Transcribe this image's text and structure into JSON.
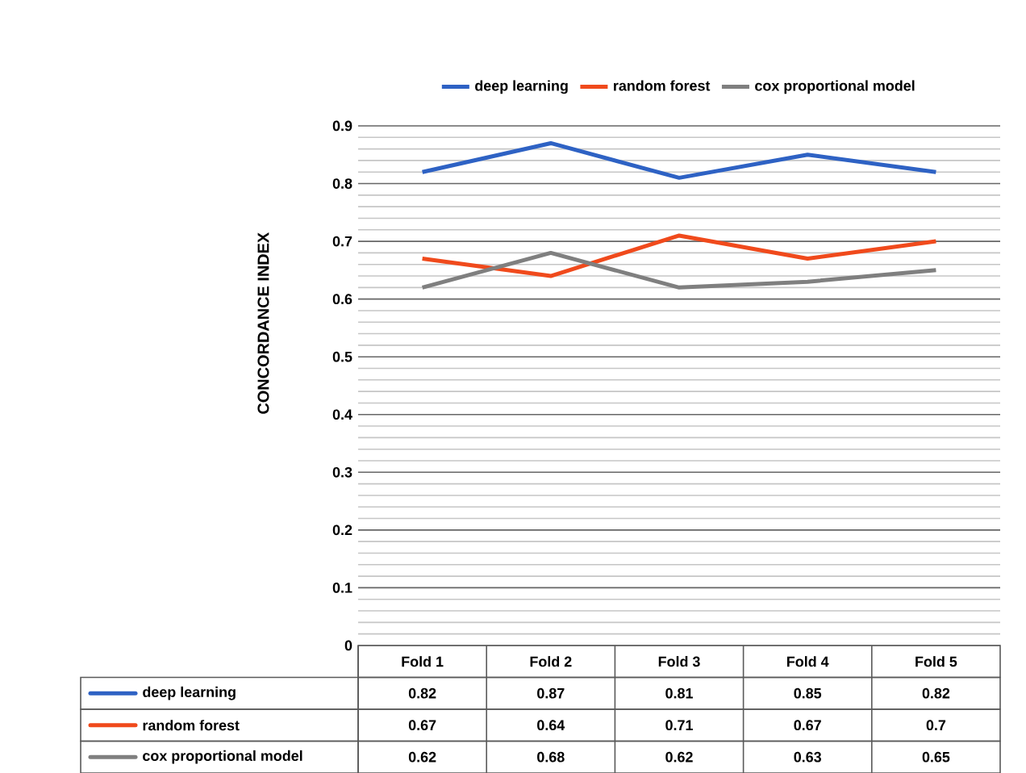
{
  "chart_data": {
    "type": "line",
    "ylabel": "CONCORDANCE INDEX",
    "categories": [
      "Fold 1",
      "Fold 2",
      "Fold 3",
      "Fold 4",
      "Fold 5"
    ],
    "series": [
      {
        "name": "deep learning",
        "color": "#2e62c4",
        "values": [
          0.82,
          0.87,
          0.81,
          0.85,
          0.82
        ]
      },
      {
        "name": "random forest",
        "color": "#f04a1c",
        "values": [
          0.67,
          0.64,
          0.71,
          0.67,
          0.7
        ]
      },
      {
        "name": "cox proportional model",
        "color": "#7f7f7f",
        "values": [
          0.62,
          0.68,
          0.62,
          0.63,
          0.65
        ]
      }
    ],
    "ylim": [
      0,
      0.9
    ],
    "yticks": [
      0,
      0.1,
      0.2,
      0.3,
      0.4,
      0.5,
      0.6,
      0.7,
      0.8,
      0.9
    ],
    "grid": "y",
    "legend": "top",
    "data_labels": true
  }
}
